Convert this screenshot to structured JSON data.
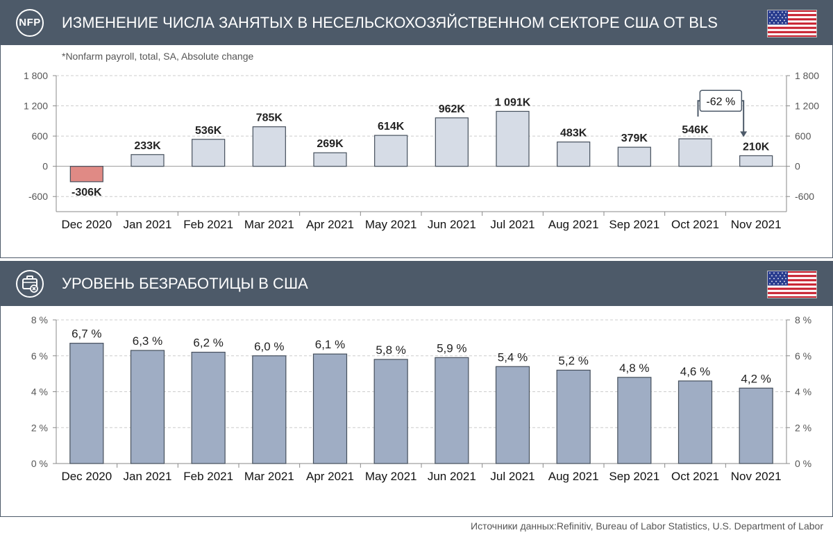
{
  "panel1": {
    "badge": "NFP",
    "title": "ИЗМЕНЕНИЕ ЧИСЛА ЗАНЯТЫХ В НЕСЕЛЬСКОХОЗЯЙСТВЕННОМ СЕКТОРЕ США ОТ BLS",
    "icon": "nfp-badge",
    "flag_icon": "us-flag-icon"
  },
  "panel2": {
    "title": "УРОВЕНЬ БЕЗРАБОТИЦЫ В США",
    "icon": "briefcase-cross-icon",
    "flag_icon": "us-flag-icon"
  },
  "colors": {
    "header_bg": "#4d5a69",
    "bar_positive": "#d6dce6",
    "bar_negative": "#e08a85",
    "bar_unemployment": "#9fadc4",
    "bar_outline": "#454f5c"
  },
  "chart_data": [
    {
      "type": "bar",
      "title": "Nonfarm payroll change",
      "note": "*Nonfarm payroll, total, SA, Absolute change",
      "categories": [
        "Dec 2020",
        "Jan 2021",
        "Feb 2021",
        "Mar 2021",
        "Apr 2021",
        "May 2021",
        "Jun 2021",
        "Jul 2021",
        "Aug 2021",
        "Sep 2021",
        "Oct 2021",
        "Nov 2021"
      ],
      "values": [
        -306,
        233,
        536,
        785,
        269,
        614,
        962,
        1091,
        483,
        379,
        546,
        210
      ],
      "data_labels": [
        "-306K",
        "233K",
        "536K",
        "785K",
        "269K",
        "614K",
        "962K",
        "1 091K",
        "483K",
        "379K",
        "546K",
        "210K"
      ],
      "ylim": [
        -900,
        1800
      ],
      "yticks": [
        -600,
        0,
        600,
        1200,
        1800
      ],
      "ytick_labels": [
        "-600",
        "0",
        "600",
        "1 200",
        "1 800"
      ],
      "annotation": {
        "text": "-62 %",
        "from": "Oct 2021",
        "to": "Nov 2021"
      }
    },
    {
      "type": "bar",
      "title": "US unemployment rate",
      "categories": [
        "Dec 2020",
        "Jan 2021",
        "Feb 2021",
        "Mar 2021",
        "Apr 2021",
        "May 2021",
        "Jun 2021",
        "Jul 2021",
        "Aug 2021",
        "Sep 2021",
        "Oct 2021",
        "Nov 2021"
      ],
      "values": [
        6.7,
        6.3,
        6.2,
        6.0,
        6.1,
        5.8,
        5.9,
        5.4,
        5.2,
        4.8,
        4.6,
        4.2
      ],
      "data_labels": [
        "6,7 %",
        "6,3 %",
        "6,2 %",
        "6,0 %",
        "6,1 %",
        "5,8 %",
        "5,9 %",
        "5,4 %",
        "5,2 %",
        "4,8 %",
        "4,6 %",
        "4,2 %"
      ],
      "ylim": [
        0,
        8
      ],
      "yticks": [
        0,
        2,
        4,
        6,
        8
      ],
      "ytick_labels": [
        "0 %",
        "2 %",
        "4 %",
        "6 %",
        "8 %"
      ]
    }
  ],
  "source": "Источники данных:Refinitiv, Bureau of Labor Statistics, U.S. Department of Labor"
}
